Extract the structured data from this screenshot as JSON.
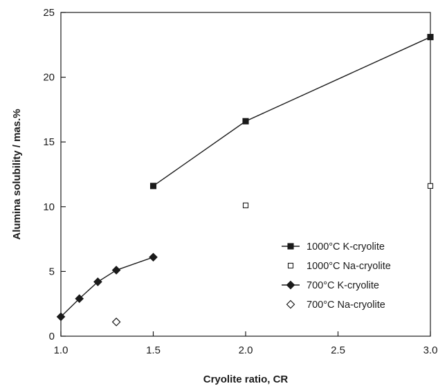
{
  "chart_data": {
    "type": "scatter",
    "title": "",
    "xlabel": "Cryolite ratio, CR",
    "ylabel": "Alumina solubility / mas.%",
    "xlim": [
      1.0,
      3.0
    ],
    "ylim": [
      0,
      25
    ],
    "xticks": [
      1.0,
      1.5,
      2.0,
      2.5,
      3.0
    ],
    "xtick_labels": [
      "1.0",
      "1.5",
      "2.0",
      "2.5",
      "3.0"
    ],
    "yticks": [
      0,
      5,
      10,
      15,
      20,
      25
    ],
    "ytick_labels": [
      "0",
      "5",
      "10",
      "15",
      "20",
      "25"
    ],
    "grid": false,
    "legend_position": "lower-right",
    "series": [
      {
        "name": "1000°C K-cryolite",
        "marker": "square-filled",
        "line": true,
        "color": "#1a1a1a",
        "x": [
          1.5,
          2.0,
          3.0
        ],
        "y": [
          11.6,
          16.6,
          23.1
        ]
      },
      {
        "name": "1000°C Na-cryolite",
        "marker": "square-open",
        "line": false,
        "color": "#1a1a1a",
        "x": [
          2.0,
          3.0
        ],
        "y": [
          10.1,
          11.6
        ]
      },
      {
        "name": "700°C K-cryolite",
        "marker": "diamond-filled",
        "line": true,
        "color": "#1a1a1a",
        "x": [
          1.0,
          1.1,
          1.2,
          1.3,
          1.5
        ],
        "y": [
          1.5,
          2.9,
          4.2,
          5.1,
          6.1
        ]
      },
      {
        "name": "700°C Na-cryolite",
        "marker": "diamond-open",
        "line": false,
        "color": "#1a1a1a",
        "x": [
          1.3
        ],
        "y": [
          1.1
        ]
      }
    ]
  }
}
